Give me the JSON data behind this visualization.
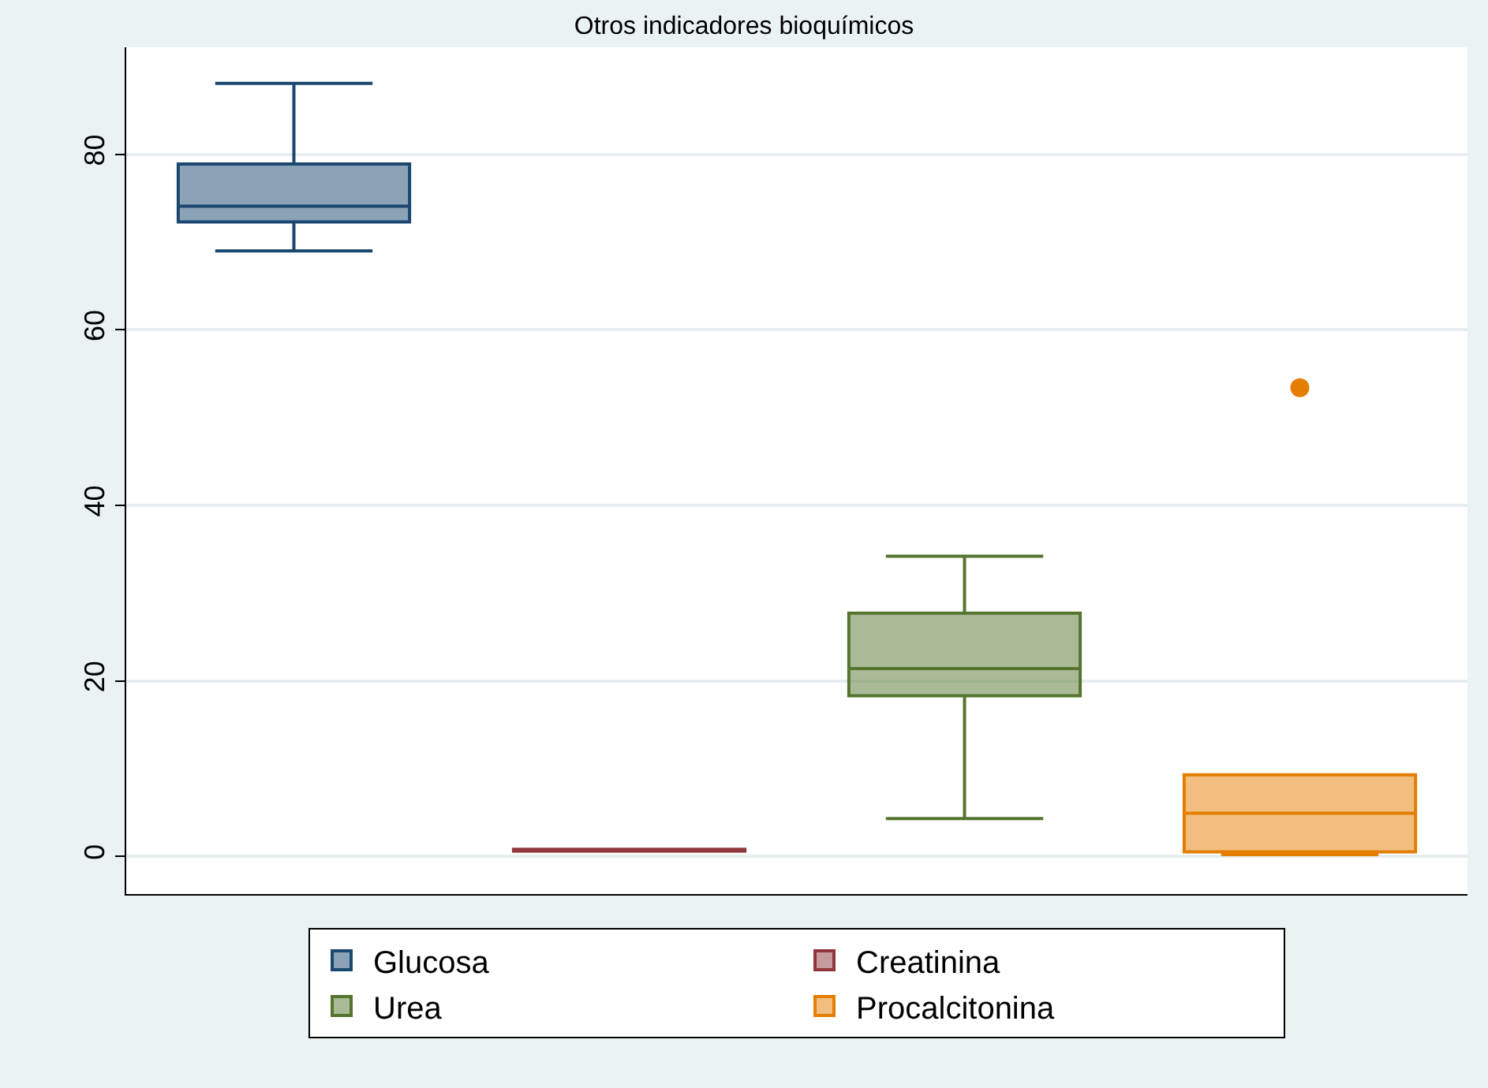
{
  "chart_data": {
    "type": "box",
    "title": "Otros indicadores bioquímicos",
    "categories": [
      null,
      null,
      null,
      null
    ],
    "series": [
      {
        "name": "Glucosa",
        "color": "#1a476f",
        "boxes": [
          {
            "low": 69,
            "q1": 72.3,
            "median": 74.1,
            "q3": 78.9,
            "high": 88.1
          },
          null,
          null,
          null
        ]
      },
      {
        "name": "Creatinina",
        "color": "#90353b",
        "boxes": [
          null,
          {
            "low": 0.6,
            "q1": 0.6,
            "median": 0.7,
            "q3": 0.8,
            "high": 0.8
          },
          null,
          null
        ]
      },
      {
        "name": "Urea",
        "color": "#55752f",
        "boxes": [
          null,
          null,
          {
            "low": 4.3,
            "q1": 18.3,
            "median": 21.4,
            "q3": 27.7,
            "high": 34.2
          },
          null
        ]
      },
      {
        "name": "Procalcitonina",
        "color": "#e37e00",
        "boxes": [
          null,
          null,
          null,
          {
            "low": 0.2,
            "q1": 0.5,
            "median": 4.9,
            "q3": 9.3,
            "high": 9.3,
            "outliers": [
              53.4
            ]
          }
        ]
      }
    ],
    "ylim": [
      -4.3,
      92.2
    ],
    "yticks": [
      0,
      20,
      40,
      60,
      80
    ],
    "grid": "y",
    "legend": "bottom",
    "tick_labels": "y"
  }
}
